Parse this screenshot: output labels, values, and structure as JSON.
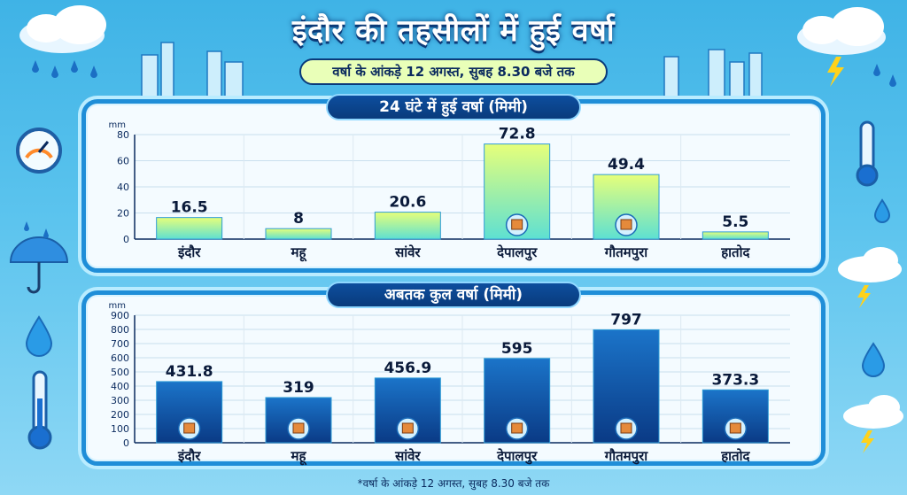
{
  "header": {
    "title": "इंदौर की तहसीलों में हुई वर्षा",
    "subtitle": "वर्षा के आंकड़े 12 अगस्त, सुबह 8.30 बजे तक"
  },
  "footnote": "*वर्षा के आंकड़े 12 अगस्त, सुबह 8.30 बजे तक",
  "colors": {
    "bar1_top": "#5ee0d2",
    "bar1_bottom": "#e6ff7a",
    "bar2_top": "#1b74c9",
    "bar2_bottom": "#0a3a85",
    "panel_border": "#1f8ed8"
  },
  "chart_data": [
    {
      "type": "bar",
      "title": "24 घंटे में हुई वर्षा (मिमी)",
      "ylabel": "mm",
      "categories": [
        "इंदौर",
        "महू",
        "सांवेर",
        "देपालपुर",
        "गौतमपुरा",
        "हातोद"
      ],
      "values": [
        16.5,
        8,
        20.6,
        72.8,
        49.4,
        5.5
      ],
      "value_labels": [
        "16.5",
        "8",
        "20.6",
        "72.8",
        "49.4",
        "5.5"
      ],
      "ylim": [
        0,
        80
      ],
      "yticks": [
        0,
        20,
        40,
        60,
        80
      ],
      "grid": true
    },
    {
      "type": "bar",
      "title": "अबतक कुल वर्षा (मिमी)",
      "ylabel": "mm",
      "categories": [
        "इंदौर",
        "महू",
        "सांवेर",
        "देपालपुर",
        "गौतमपुरा",
        "हातोद"
      ],
      "values": [
        431.8,
        319,
        456.9,
        595,
        797,
        373.3
      ],
      "value_labels": [
        "431.8",
        "319",
        "456.9",
        "595",
        "797",
        "373.3"
      ],
      "ylim": [
        0,
        900
      ],
      "yticks": [
        0,
        100,
        200,
        300,
        400,
        500,
        600,
        700,
        800,
        900
      ],
      "grid": true
    }
  ]
}
